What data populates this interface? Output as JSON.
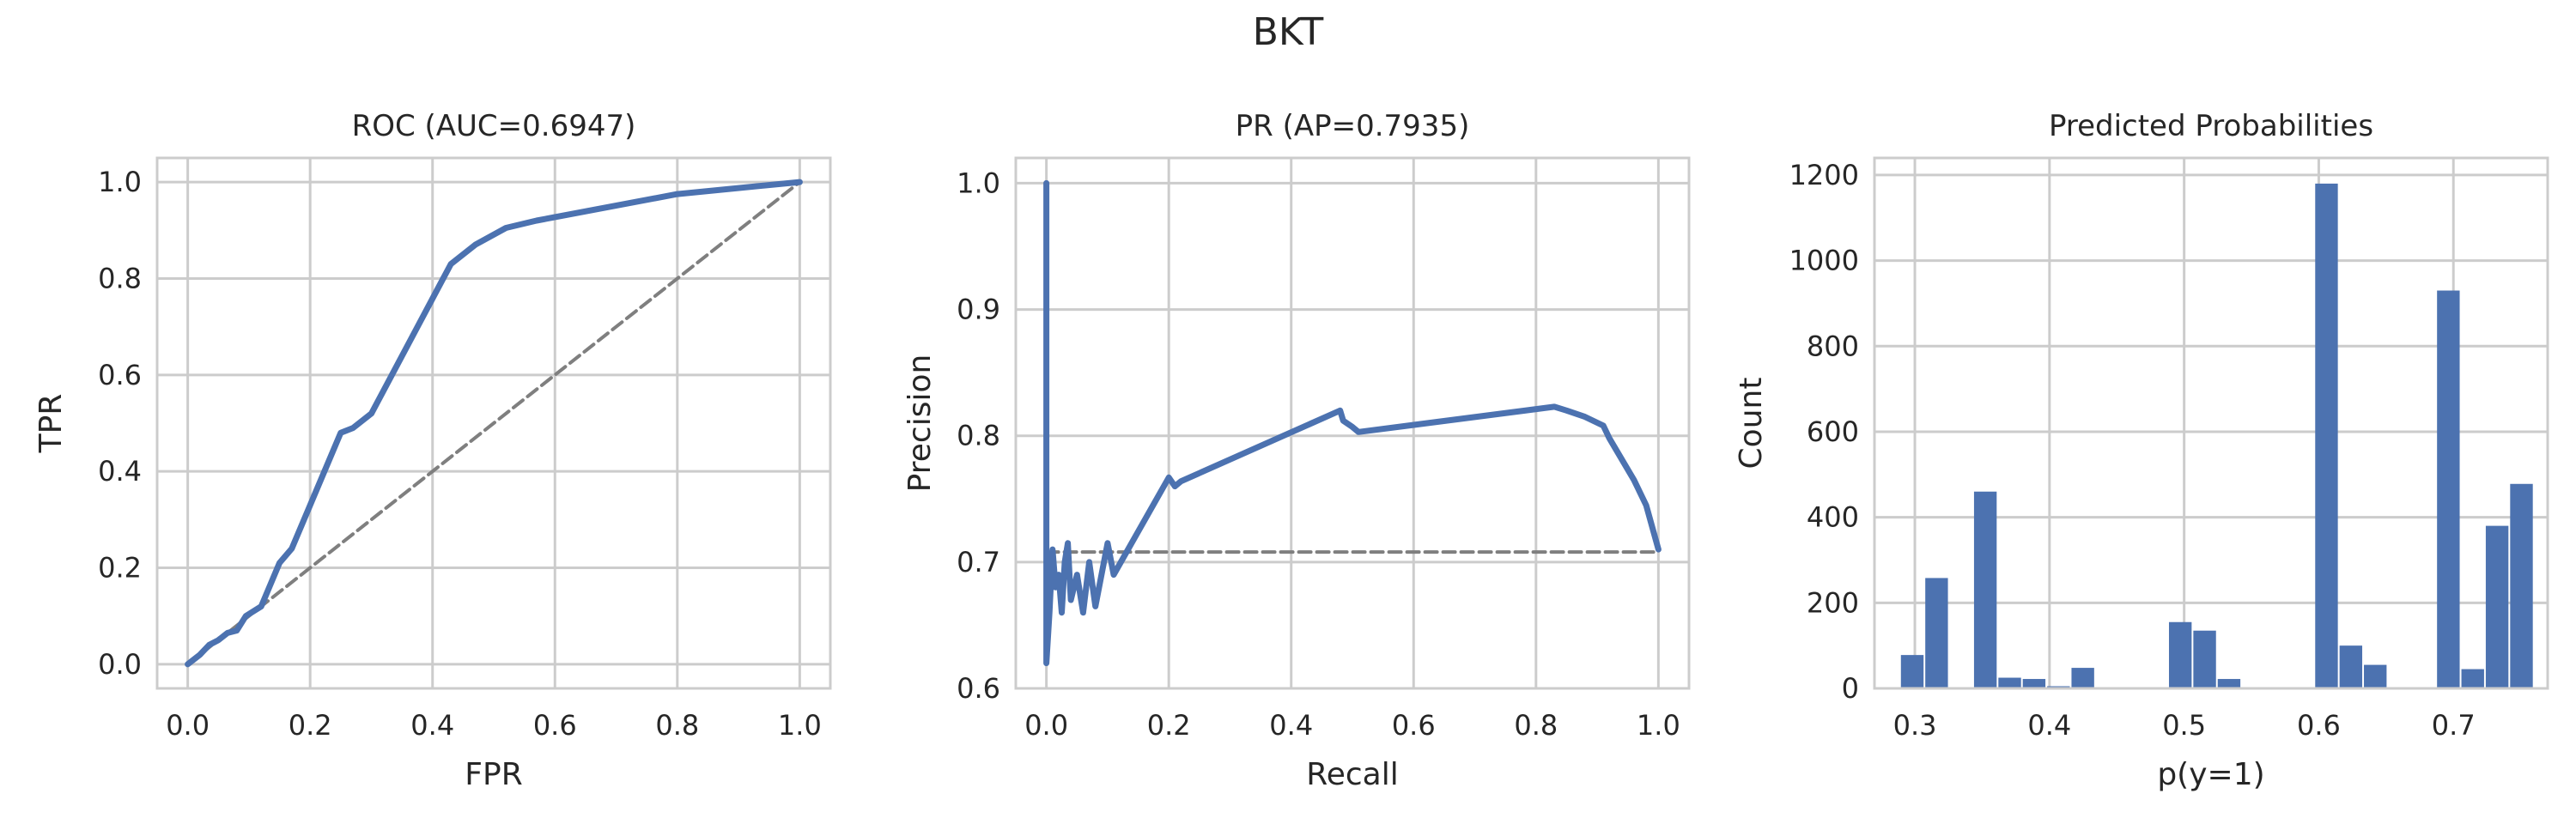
{
  "figure": {
    "title": "BKT"
  },
  "colors": {
    "series": "#4c72b0",
    "chance": "#7f7f7f",
    "grid": "#cccccc",
    "frame": "#cccccc"
  },
  "chart_data": [
    {
      "type": "line",
      "title": "ROC (AUC=0.6947)",
      "xlabel": "FPR",
      "ylabel": "TPR",
      "xlim": [
        -0.05,
        1.05
      ],
      "ylim": [
        -0.05,
        1.05
      ],
      "xticks": [
        0.0,
        0.2,
        0.4,
        0.6,
        0.8,
        1.0
      ],
      "yticks": [
        0.0,
        0.2,
        0.4,
        0.6,
        0.8,
        1.0
      ],
      "tick_labels_x": [
        "0.0",
        "0.2",
        "0.4",
        "0.6",
        "0.8",
        "1.0"
      ],
      "tick_labels_y": [
        "0.0",
        "0.2",
        "0.4",
        "0.6",
        "0.8",
        "1.0"
      ],
      "grid": true,
      "series": [
        {
          "style": "solid",
          "x": [
            0.0,
            0.02,
            0.035,
            0.05,
            0.065,
            0.08,
            0.095,
            0.12,
            0.15,
            0.17,
            0.2,
            0.25,
            0.27,
            0.3,
            0.43,
            0.47,
            0.52,
            0.57,
            0.8,
            1.0
          ],
          "y": [
            0.0,
            0.02,
            0.04,
            0.05,
            0.065,
            0.07,
            0.1,
            0.12,
            0.21,
            0.24,
            0.33,
            0.48,
            0.49,
            0.52,
            0.83,
            0.87,
            0.905,
            0.92,
            0.975,
            1.0
          ]
        },
        {
          "style": "dashed",
          "x": [
            0.0,
            1.0
          ],
          "y": [
            0.0,
            1.0
          ]
        }
      ]
    },
    {
      "type": "line",
      "title": "PR (AP=0.7935)",
      "xlabel": "Recall",
      "ylabel": "Precision",
      "xlim": [
        -0.05,
        1.05
      ],
      "ylim": [
        0.6,
        1.02
      ],
      "xticks": [
        0.0,
        0.2,
        0.4,
        0.6,
        0.8,
        1.0
      ],
      "yticks": [
        0.6,
        0.7,
        0.8,
        0.9,
        1.0
      ],
      "tick_labels_x": [
        "0.0",
        "0.2",
        "0.4",
        "0.6",
        "0.8",
        "1.0"
      ],
      "tick_labels_y": [
        "0.6",
        "0.7",
        "0.8",
        "0.9",
        "1.0"
      ],
      "grid": true,
      "series": [
        {
          "style": "solid",
          "x": [
            0.0,
            0.0,
            0.005,
            0.01,
            0.015,
            0.02,
            0.025,
            0.03,
            0.035,
            0.04,
            0.05,
            0.06,
            0.07,
            0.08,
            0.1,
            0.11,
            0.2,
            0.21,
            0.22,
            0.48,
            0.485,
            0.5,
            0.51,
            0.83,
            0.85,
            0.88,
            0.91,
            0.92,
            0.96,
            0.98,
            1.0
          ],
          "y": [
            1.0,
            0.62,
            0.66,
            0.71,
            0.68,
            0.69,
            0.66,
            0.7,
            0.715,
            0.67,
            0.69,
            0.66,
            0.7,
            0.665,
            0.715,
            0.69,
            0.767,
            0.76,
            0.764,
            0.82,
            0.812,
            0.807,
            0.803,
            0.823,
            0.82,
            0.815,
            0.808,
            0.798,
            0.765,
            0.745,
            0.71
          ]
        },
        {
          "style": "dashed",
          "x": [
            0.0,
            1.0
          ],
          "y": [
            0.708,
            0.708
          ]
        }
      ]
    },
    {
      "type": "bar",
      "title": "Predicted Probabilities",
      "xlabel": "p(y=1)",
      "ylabel": "Count",
      "xlim": [
        0.27,
        0.77
      ],
      "ylim": [
        0,
        1240
      ],
      "xticks": [
        0.3,
        0.4,
        0.5,
        0.6,
        0.7
      ],
      "yticks": [
        0,
        200,
        400,
        600,
        800,
        1000,
        1200
      ],
      "tick_labels_x": [
        "0.3",
        "0.4",
        "0.5",
        "0.6",
        "0.7"
      ],
      "tick_labels_y": [
        "0",
        "200",
        "400",
        "600",
        "800",
        "1000",
        "1200"
      ],
      "grid": true,
      "bin_start": 0.289,
      "bin_width": 0.0181,
      "values": [
        78,
        258,
        0,
        460,
        25,
        22,
        5,
        48,
        0,
        0,
        0,
        155,
        135,
        22,
        0,
        0,
        0,
        1180,
        100,
        55,
        0,
        0,
        930,
        45,
        380,
        478
      ]
    }
  ]
}
